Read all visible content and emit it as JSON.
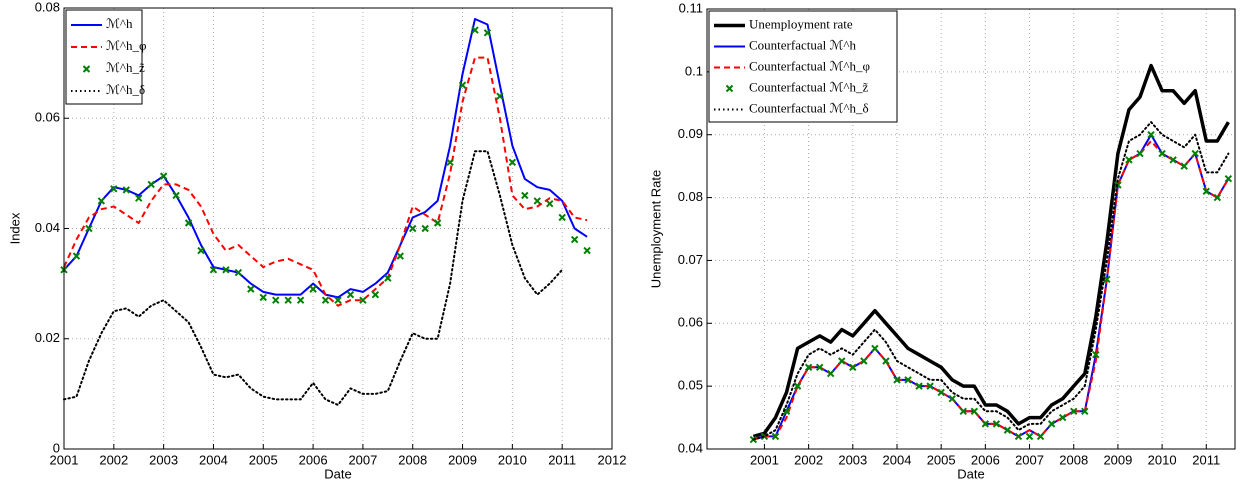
{
  "chart_data": [
    {
      "type": "line",
      "xlabel": "Date",
      "ylabel": "Index",
      "xlim": [
        2001,
        2012
      ],
      "xticks": [
        2001,
        2002,
        2003,
        2004,
        2005,
        2006,
        2007,
        2008,
        2009,
        2010,
        2011,
        2012
      ],
      "ylim": [
        0,
        0.08
      ],
      "yticks": [
        0,
        0.02,
        0.04,
        0.06,
        0.08
      ],
      "grid": true,
      "legend": "upper-left",
      "x": [
        2001,
        2001.25,
        2001.5,
        2001.75,
        2002,
        2002.25,
        2002.5,
        2002.75,
        2003,
        2003.25,
        2003.5,
        2003.75,
        2004,
        2004.25,
        2004.5,
        2004.75,
        2005,
        2005.25,
        2005.5,
        2005.75,
        2006,
        2006.25,
        2006.5,
        2006.75,
        2007,
        2007.25,
        2007.5,
        2007.75,
        2008,
        2008.25,
        2008.5,
        2008.75,
        2009,
        2009.25,
        2009.5,
        2009.75,
        2010,
        2010.25,
        2010.5,
        2010.75,
        2011,
        2011.25,
        2011.5
      ],
      "series": [
        {
          "name": "ℳ^h",
          "color": "#0000ff",
          "style": "solid",
          "values": [
            0.0325,
            0.035,
            0.04,
            0.045,
            0.0475,
            0.047,
            0.046,
            0.048,
            0.0495,
            0.046,
            0.042,
            0.037,
            0.033,
            0.0325,
            0.032,
            0.03,
            0.0285,
            0.028,
            0.028,
            0.028,
            0.03,
            0.028,
            0.0275,
            0.029,
            0.0285,
            0.03,
            0.032,
            0.037,
            0.042,
            0.043,
            0.045,
            0.055,
            0.068,
            0.078,
            0.077,
            0.066,
            0.055,
            0.049,
            0.0475,
            0.047,
            0.045,
            0.04,
            0.0385
          ]
        },
        {
          "name": "ℳ^h_φ",
          "color": "#ff0000",
          "style": "dashed",
          "values": [
            0.033,
            0.038,
            0.042,
            0.0435,
            0.044,
            0.0425,
            0.041,
            0.045,
            0.048,
            0.048,
            0.047,
            0.044,
            0.039,
            0.036,
            0.037,
            0.035,
            0.033,
            0.034,
            0.0345,
            0.0335,
            0.0325,
            0.028,
            0.026,
            0.027,
            0.027,
            0.029,
            0.031,
            0.037,
            0.044,
            0.0425,
            0.041,
            0.05,
            0.063,
            0.071,
            0.071,
            0.06,
            0.046,
            0.0435,
            0.044,
            0.0455,
            0.045,
            0.042,
            0.0415
          ]
        },
        {
          "name": "ℳ^h_z̃",
          "color": "#008000",
          "style": "markers",
          "values": [
            0.0325,
            0.035,
            0.04,
            0.045,
            0.0472,
            0.047,
            0.0455,
            0.048,
            0.0495,
            0.046,
            0.041,
            0.036,
            0.0325,
            0.0325,
            0.032,
            0.029,
            0.0275,
            0.027,
            0.027,
            0.027,
            0.029,
            0.027,
            0.027,
            0.028,
            0.027,
            0.028,
            0.031,
            0.035,
            0.04,
            0.04,
            0.041,
            0.052,
            0.066,
            0.076,
            0.0755,
            0.064,
            0.052,
            0.046,
            0.045,
            0.0445,
            0.042,
            0.038,
            0.036
          ]
        },
        {
          "name": "ℳ^h_δ",
          "color": "#000000",
          "style": "dotted",
          "values": [
            0.009,
            0.0095,
            0.016,
            0.021,
            0.025,
            0.0255,
            0.024,
            0.026,
            0.027,
            0.025,
            0.023,
            0.0185,
            0.0135,
            0.013,
            0.0135,
            0.011,
            0.0095,
            0.009,
            0.009,
            0.009,
            0.012,
            0.009,
            0.008,
            0.011,
            0.01,
            0.01,
            0.0105,
            0.016,
            0.021,
            0.02,
            0.02,
            0.03,
            0.045,
            0.054,
            0.054,
            0.046,
            0.037,
            0.031,
            0.028,
            0.03,
            0.0325,
            null,
            null
          ]
        }
      ]
    },
    {
      "type": "line",
      "xlabel": "Date",
      "ylabel": "Unemployment Rate",
      "xlim": [
        1999.7,
        2011.65
      ],
      "xticks": [
        2001,
        2002,
        2003,
        2004,
        2005,
        2006,
        2007,
        2008,
        2009,
        2010,
        2011
      ],
      "ylim": [
        0.04,
        0.11
      ],
      "yticks": [
        0.04,
        0.05,
        0.06,
        0.07,
        0.08,
        0.09,
        0.1,
        0.11
      ],
      "grid": true,
      "legend": "upper-left",
      "x": [
        2000.75,
        2001,
        2001.25,
        2001.5,
        2001.75,
        2002,
        2002.25,
        2002.5,
        2002.75,
        2003,
        2003.25,
        2003.5,
        2003.75,
        2004,
        2004.25,
        2004.5,
        2004.75,
        2005,
        2005.25,
        2005.5,
        2005.75,
        2006,
        2006.25,
        2006.5,
        2006.75,
        2007,
        2007.25,
        2007.5,
        2007.75,
        2008,
        2008.25,
        2008.5,
        2008.75,
        2009,
        2009.25,
        2009.5,
        2009.75,
        2010,
        2010.25,
        2010.5,
        2010.75,
        2011,
        2011.25,
        2011.5
      ],
      "series": [
        {
          "name": "Unemployment rate",
          "color": "#000000",
          "style": "thick",
          "values": [
            0.042,
            0.0425,
            0.045,
            0.049,
            0.056,
            0.057,
            0.058,
            0.057,
            0.059,
            0.058,
            0.06,
            0.062,
            0.06,
            0.058,
            0.056,
            0.055,
            0.054,
            0.053,
            0.051,
            0.05,
            0.05,
            0.047,
            0.047,
            0.046,
            0.044,
            0.045,
            0.045,
            0.047,
            0.048,
            0.05,
            0.052,
            0.061,
            0.073,
            0.087,
            0.094,
            0.096,
            0.101,
            0.097,
            0.097,
            0.095,
            0.097,
            0.089,
            0.089,
            0.092
          ]
        },
        {
          "name": "Counterfactual ℳ^h",
          "color": "#0000ff",
          "style": "solid",
          "values": [
            0.0415,
            0.042,
            0.042,
            0.046,
            0.05,
            0.053,
            0.053,
            0.052,
            0.054,
            0.053,
            0.054,
            0.056,
            0.054,
            0.051,
            0.051,
            0.05,
            0.05,
            0.049,
            0.048,
            0.046,
            0.046,
            0.044,
            0.044,
            0.043,
            0.042,
            0.043,
            0.042,
            0.044,
            0.045,
            0.046,
            0.046,
            0.055,
            0.067,
            0.082,
            0.086,
            0.087,
            0.09,
            0.087,
            0.086,
            0.085,
            0.087,
            0.081,
            0.08,
            0.083
          ]
        },
        {
          "name": "Counterfactual ℳ^h_φ",
          "color": "#ff0000",
          "style": "dashed",
          "values": [
            0.0415,
            0.042,
            0.042,
            0.045,
            0.05,
            0.053,
            0.053,
            0.052,
            0.054,
            0.053,
            0.054,
            0.056,
            0.054,
            0.051,
            0.051,
            0.05,
            0.05,
            0.049,
            0.048,
            0.046,
            0.046,
            0.044,
            0.044,
            0.043,
            0.042,
            0.043,
            0.042,
            0.044,
            0.045,
            0.046,
            0.046,
            0.054,
            0.067,
            0.082,
            0.086,
            0.087,
            0.089,
            0.087,
            0.086,
            0.085,
            0.087,
            0.081,
            0.08,
            0.083
          ]
        },
        {
          "name": "Counterfactual ℳ^h_z̃",
          "color": "#008000",
          "style": "markers",
          "values": [
            0.0415,
            0.042,
            0.042,
            0.046,
            0.05,
            0.053,
            0.053,
            0.052,
            0.054,
            0.053,
            0.054,
            0.056,
            0.054,
            0.051,
            0.051,
            0.05,
            0.05,
            0.049,
            0.048,
            0.046,
            0.046,
            0.044,
            0.044,
            0.043,
            0.042,
            0.042,
            0.042,
            0.044,
            0.045,
            0.046,
            0.046,
            0.055,
            0.067,
            0.082,
            0.086,
            0.087,
            0.09,
            0.087,
            0.086,
            0.085,
            0.087,
            0.081,
            0.08,
            0.083
          ]
        },
        {
          "name": "Counterfactual ℳ^h_δ",
          "color": "#000000",
          "style": "dotted",
          "values": [
            0.0415,
            0.042,
            0.043,
            0.047,
            0.052,
            0.055,
            0.056,
            0.055,
            0.056,
            0.055,
            0.057,
            0.059,
            0.057,
            0.054,
            0.053,
            0.052,
            0.051,
            0.051,
            0.049,
            0.048,
            0.048,
            0.046,
            0.046,
            0.045,
            0.043,
            0.044,
            0.044,
            0.046,
            0.047,
            0.048,
            0.05,
            0.059,
            0.07,
            0.083,
            0.089,
            0.09,
            0.092,
            0.09,
            0.089,
            0.088,
            0.09,
            0.084,
            0.084,
            0.087
          ]
        }
      ]
    }
  ]
}
